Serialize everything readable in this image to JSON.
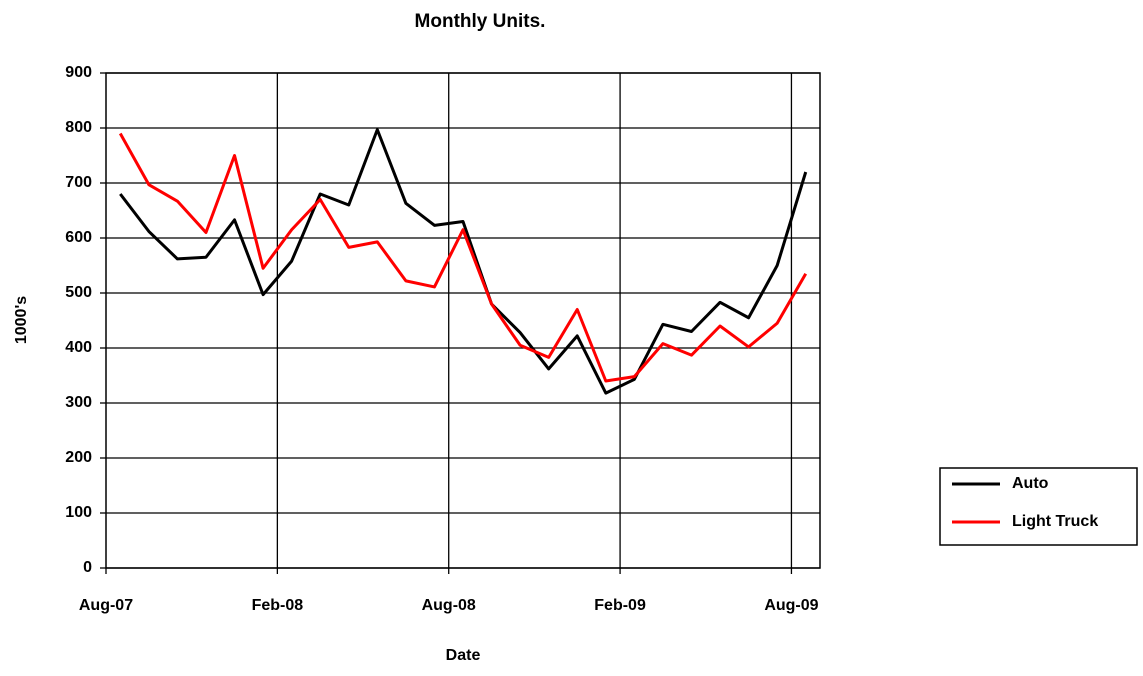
{
  "chart_data": {
    "type": "line",
    "title": "Monthly Units.",
    "x_label": "Date",
    "y_label": "1000's",
    "categories": [
      "Aug-07",
      null,
      null,
      null,
      null,
      null,
      "Feb-08",
      null,
      null,
      null,
      null,
      null,
      "Aug-08",
      null,
      null,
      null,
      null,
      null,
      "Feb-09",
      null,
      null,
      null,
      null,
      null,
      "Aug-09"
    ],
    "series": [
      {
        "name": "Auto",
        "color": "#000000",
        "values": [
          680,
          612,
          562,
          565,
          633,
          497,
          558,
          680,
          660,
          797,
          663,
          623,
          630,
          480,
          428,
          362,
          422,
          318,
          343,
          443,
          430,
          483,
          455,
          550,
          720
        ]
      },
      {
        "name": "Light Truck",
        "color": "#ff0000",
        "values": [
          790,
          697,
          667,
          610,
          750,
          545,
          615,
          670,
          583,
          593,
          522,
          511,
          615,
          480,
          405,
          383,
          470,
          340,
          348,
          408,
          387,
          440,
          402,
          445,
          535
        ]
      }
    ],
    "ylim": [
      0,
      900
    ],
    "yticks": [
      0,
      100,
      200,
      300,
      400,
      500,
      600,
      700,
      800,
      900
    ],
    "grid": true,
    "legend": "right"
  }
}
